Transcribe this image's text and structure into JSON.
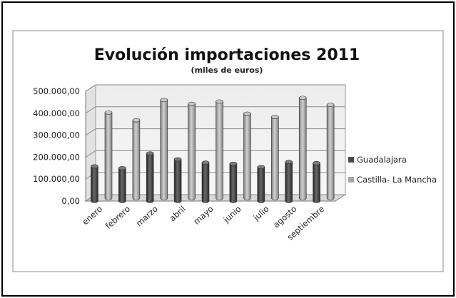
{
  "chart_data": {
    "type": "bar",
    "title": "Evolución importaciones 2011",
    "subtitle": "(miles de euros)",
    "categories": [
      "enero",
      "febrero",
      "marzo",
      "abril",
      "mayo",
      "junio",
      "julio",
      "agosto",
      "septiembre"
    ],
    "series": [
      {
        "name": "Guadalajara",
        "values": [
          158000,
          150000,
          217000,
          190000,
          175000,
          170000,
          155000,
          178000,
          173000
        ]
      },
      {
        "name": "Castilla- La Mancha",
        "values": [
          390000,
          355000,
          447000,
          430000,
          440000,
          385000,
          370000,
          457000,
          425000
        ]
      }
    ],
    "ylim": [
      0,
      500000
    ],
    "yticks": [
      "0,00",
      "100.000,00",
      "200.000,00",
      "300.000,00",
      "400.000,00",
      "500.000,00"
    ],
    "ytick_values": [
      0,
      100000,
      200000,
      300000,
      400000,
      500000
    ],
    "grid": true,
    "legend": "right",
    "style": "3d-cylinder",
    "colors": {
      "Guadalajara": "#4a4a4a",
      "Castilla- La Mancha": "#a6a6a6"
    }
  }
}
